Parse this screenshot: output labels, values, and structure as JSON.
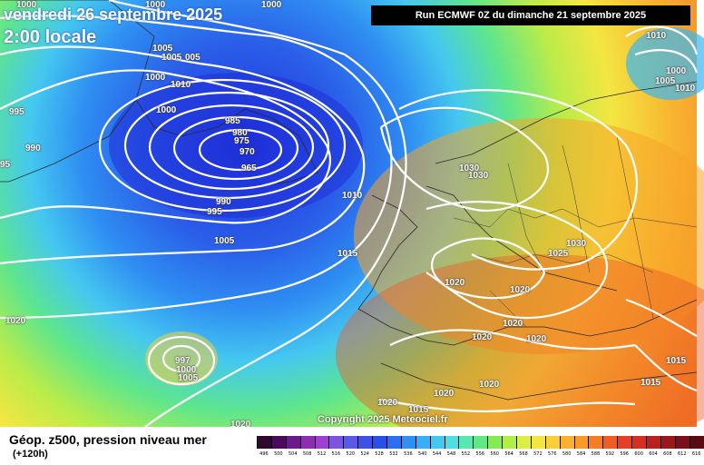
{
  "header": {
    "date": "vendredi 26 septembre 2025",
    "local_time": "2:00 locale",
    "run": "Run ECMWF 0Z du dimanche 21 septembre 2025"
  },
  "copyright": "Copyright 2025 Meteociel.fr",
  "footer": {
    "parameter": "Géop. z500, pression niveau mer",
    "lead_time": "(+120h)"
  },
  "colors": {
    "deep_blue": "#1f2fd9",
    "blue": "#2a7ef0",
    "light_blue": "#39b8f4",
    "cyan": "#47e6ea",
    "green": "#5ee68c",
    "yellow_green": "#b9ec4a",
    "yellow": "#f4e642",
    "orange": "#f7a428",
    "red": "#ee4b25",
    "isobar": "#ffffff"
  },
  "scale": {
    "labels": [
      "496",
      "500",
      "504",
      "508",
      "512",
      "516",
      "520",
      "524",
      "528",
      "532",
      "536",
      "540",
      "544",
      "548",
      "552",
      "556",
      "560",
      "564",
      "568",
      "572",
      "576",
      "580",
      "584",
      "588",
      "592",
      "596",
      "600",
      "604",
      "608",
      "612",
      "616"
    ],
    "colors": [
      "#2b0a2e",
      "#4a0b5a",
      "#6a1a8a",
      "#8b2fb0",
      "#9f3fd0",
      "#7d54e0",
      "#5b5ae8",
      "#3e50e6",
      "#2a4ee8",
      "#2a6ff0",
      "#2f8ff2",
      "#3aaef4",
      "#45c8f0",
      "#4fdfe2",
      "#56e8b0",
      "#62e882",
      "#86ea58",
      "#b4ec48",
      "#dcee44",
      "#f4e642",
      "#f8cf3a",
      "#f8b230",
      "#f69a2a",
      "#f37e26",
      "#ee5e24",
      "#e44124",
      "#d43022",
      "#b8221e",
      "#98181c",
      "#7a1018",
      "#5a0a12"
    ]
  },
  "isobars": [
    {
      "id": "i1",
      "label": "1000",
      "tag": "1000-top-left"
    },
    {
      "id": "i2",
      "label": "1000",
      "tag": "1000-top-center-left"
    },
    {
      "id": "i3",
      "label": "1000",
      "tag": "1000-top-center"
    },
    {
      "id": "i4",
      "label": "1005",
      "tag": "1005-a"
    },
    {
      "id": "i5",
      "label": "1005",
      "tag": "1005-b"
    },
    {
      "id": "i6",
      "label": "005",
      "tag": "005"
    },
    {
      "id": "i7",
      "label": "1000",
      "tag": "1000-c"
    },
    {
      "id": "i8",
      "label": "1010",
      "tag": "1010-a"
    },
    {
      "id": "i9",
      "label": "995",
      "tag": "995-left"
    },
    {
      "id": "i10",
      "label": "1000",
      "tag": "1000-d"
    },
    {
      "id": "i11",
      "label": "985",
      "tag": "985"
    },
    {
      "id": "i12",
      "label": "980",
      "tag": "980"
    },
    {
      "id": "i13",
      "label": "975",
      "tag": "975"
    },
    {
      "id": "i14",
      "label": "970",
      "tag": "970"
    },
    {
      "id": "i15",
      "label": "965",
      "tag": "965"
    },
    {
      "id": "i16",
      "label": "990",
      "tag": "990-left"
    },
    {
      "id": "i17",
      "label": "95",
      "tag": "95-edge"
    },
    {
      "id": "i18",
      "label": "990",
      "tag": "990-center"
    },
    {
      "id": "i19",
      "label": "995",
      "tag": "995-center"
    },
    {
      "id": "i20",
      "label": "1005",
      "tag": "1005-c"
    },
    {
      "id": "i21",
      "label": "1010",
      "tag": "1010-b"
    },
    {
      "id": "i22",
      "label": "1015",
      "tag": "1015-a"
    },
    {
      "id": "i23",
      "label": "1020",
      "tag": "1020-left"
    },
    {
      "id": "i24",
      "label": "997",
      "tag": "997"
    },
    {
      "id": "i25",
      "label": "1000",
      "tag": "1000-e"
    },
    {
      "id": "i26",
      "label": "1005",
      "tag": "1005-d"
    },
    {
      "id": "i27",
      "label": "1030",
      "tag": "1030-a"
    },
    {
      "id": "i28",
      "label": "1030",
      "tag": "1030-b"
    },
    {
      "id": "i29",
      "label": "1030",
      "tag": "1030-c"
    },
    {
      "id": "i30",
      "label": "1025",
      "tag": "1025"
    },
    {
      "id": "i31",
      "label": "1020",
      "tag": "1020-a"
    },
    {
      "id": "i32",
      "label": "1020",
      "tag": "1020-b"
    },
    {
      "id": "i33",
      "label": "1020",
      "tag": "1020-c"
    },
    {
      "id": "i34",
      "label": "1020",
      "tag": "1020-d"
    },
    {
      "id": "i35",
      "label": "1020",
      "tag": "1020-e"
    },
    {
      "id": "i36",
      "label": "1020",
      "tag": "1020-f"
    },
    {
      "id": "i37",
      "label": "1015",
      "tag": "1015-b"
    },
    {
      "id": "i38",
      "label": "1020",
      "tag": "1020-g"
    },
    {
      "id": "i39",
      "label": "1015",
      "tag": "1015-c"
    },
    {
      "id": "i40",
      "label": "1015",
      "tag": "1015-d"
    },
    {
      "id": "i41",
      "label": "1020",
      "tag": "1020-h"
    },
    {
      "id": "i42",
      "label": "1010",
      "tag": "1010-top-right"
    },
    {
      "id": "i43",
      "label": "1000",
      "tag": "1000-right"
    },
    {
      "id": "i44",
      "label": "1005",
      "tag": "1005-right"
    },
    {
      "id": "i45",
      "label": "1010",
      "tag": "1010-right"
    },
    {
      "id": "i46",
      "label": "1020",
      "tag": "1020-bottom"
    }
  ]
}
